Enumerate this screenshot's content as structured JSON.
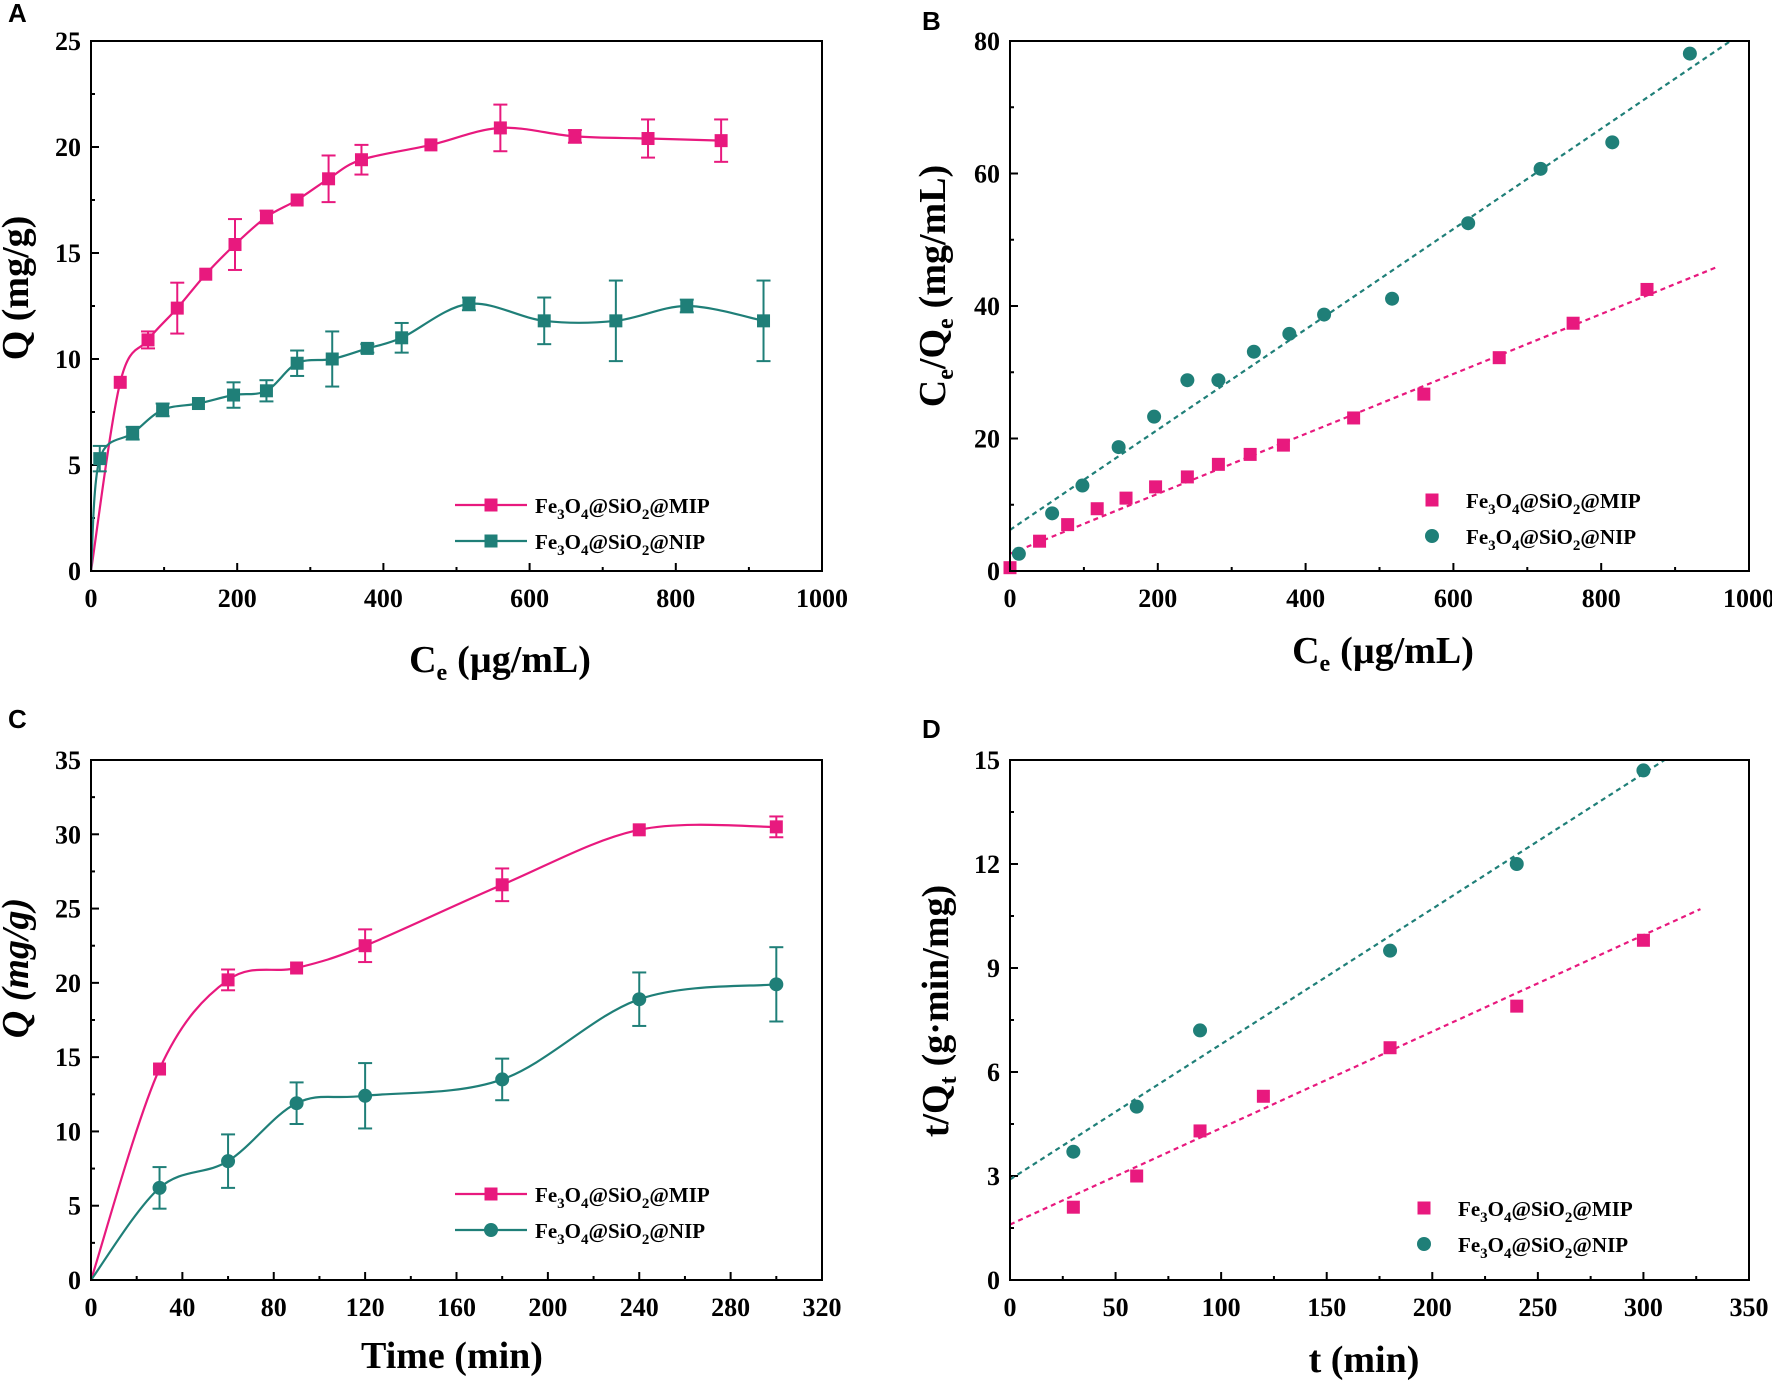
{
  "colors": {
    "mip": "#e8197e",
    "nip": "#1f7f78"
  },
  "chart_data": [
    {
      "panel": "A",
      "type": "line",
      "xlabel": "C",
      "xlabel_sub": "e",
      "xlabel_unit": "(µg/mL)",
      "ylabel": "Q (mg/g)",
      "xlim": [
        0,
        1000
      ],
      "ylim": [
        0,
        25
      ],
      "xticks": [
        "0",
        "200",
        "400",
        "600",
        "800",
        "1000"
      ],
      "yticks": [
        "0",
        "5",
        "10",
        "15",
        "20",
        "25"
      ],
      "legend_position": "bottom-right",
      "series": [
        {
          "name": "Fe3O4@SiO2@MIP",
          "marker": "square",
          "color_key": "mip",
          "style": "solid",
          "x": [
            0,
            40,
            78,
            118,
            157,
            197,
            240,
            282,
            325,
            370,
            465,
            560,
            662,
            762,
            862
          ],
          "y": [
            0,
            8.9,
            10.9,
            12.4,
            14.0,
            15.4,
            16.7,
            17.5,
            18.5,
            19.4,
            20.1,
            20.9,
            20.5,
            20.4,
            20.3
          ],
          "err": [
            0,
            0,
            0.4,
            1.2,
            0,
            1.2,
            0.3,
            0,
            1.1,
            0.7,
            0,
            1.1,
            0.3,
            0.9,
            1.0
          ]
        },
        {
          "name": "Fe3O4@SiO2@NIP",
          "marker": "square",
          "color_key": "nip",
          "style": "solid",
          "x": [
            0,
            12,
            57,
            98,
            147,
            195,
            240,
            282,
            330,
            378,
            425,
            517,
            620,
            718,
            815,
            920
          ],
          "y": [
            0,
            5.3,
            6.5,
            7.6,
            7.9,
            8.3,
            8.5,
            9.8,
            10.0,
            10.5,
            11.0,
            12.6,
            11.8,
            11.8,
            12.5,
            11.8
          ],
          "err": [
            0,
            0.6,
            0.3,
            0.3,
            0,
            0.6,
            0.5,
            0.6,
            1.3,
            0.2,
            0.7,
            0.3,
            1.1,
            1.9,
            0.3,
            1.9
          ]
        }
      ]
    },
    {
      "panel": "B",
      "type": "scatter",
      "xlabel": "C",
      "xlabel_sub": "e",
      "xlabel_unit": "(µg/mL)",
      "ylabel": "C",
      "ylabel_sub": "e",
      "ylabel_mid": "/Q",
      "ylabel_sub2": "e",
      "ylabel_unit": "(mg/mL)",
      "xlim": [
        0,
        1000
      ],
      "ylim": [
        0,
        80
      ],
      "xticks": [
        "0",
        "200",
        "400",
        "600",
        "800",
        "1000"
      ],
      "yticks": [
        "0",
        "20",
        "40",
        "60",
        "80"
      ],
      "legend_position": "bottom-right",
      "series": [
        {
          "name": "Fe3O4@SiO2@MIP",
          "marker": "square",
          "color_key": "mip",
          "x": [
            0,
            40,
            78,
            118,
            157,
            197,
            240,
            282,
            325,
            370,
            465,
            560,
            662,
            762,
            862
          ],
          "y": [
            0.5,
            4.5,
            7.0,
            9.4,
            11.0,
            12.7,
            14.2,
            16.1,
            17.6,
            19.0,
            23.1,
            26.7,
            32.2,
            37.4,
            42.5
          ],
          "fit": {
            "x": [
              0,
              955
            ],
            "y": [
              2.6,
              45.8
            ]
          }
        },
        {
          "name": "Fe3O4@SiO2@NIP",
          "marker": "circle",
          "color_key": "nip",
          "x": [
            12,
            57,
            98,
            147,
            195,
            240,
            282,
            330,
            378,
            425,
            517,
            620,
            718,
            815,
            920
          ],
          "y": [
            2.6,
            8.7,
            12.9,
            18.7,
            23.3,
            28.8,
            28.8,
            33.1,
            35.8,
            38.7,
            41.1,
            52.5,
            60.7,
            64.7,
            78.1
          ]
        }
      ],
      "fits": [
        {
          "color_key": "mip",
          "x": [
            0,
            955
          ],
          "y": [
            2.6,
            45.8
          ]
        },
        {
          "color_key": "nip",
          "x": [
            0,
            975
          ],
          "y": [
            6.2,
            80
          ]
        }
      ]
    },
    {
      "panel": "C",
      "type": "line",
      "xlabel": "Time (min)",
      "ylabel": "Q (mg/g)",
      "xlim": [
        0,
        320
      ],
      "ylim": [
        0,
        35
      ],
      "xticks": [
        "0",
        "40",
        "80",
        "120",
        "160",
        "200",
        "240",
        "280",
        "320"
      ],
      "yticks": [
        "0",
        "5",
        "10",
        "15",
        "20",
        "25",
        "30",
        "35"
      ],
      "legend_position": "bottom-right",
      "series": [
        {
          "name": "Fe3O4@SiO2@MIP",
          "marker": "square",
          "color_key": "mip",
          "style": "solid",
          "x": [
            0,
            30,
            60,
            90,
            120,
            180,
            240,
            300
          ],
          "y": [
            0,
            14.2,
            20.2,
            21.0,
            22.5,
            26.6,
            30.3,
            30.5
          ],
          "err": [
            0,
            0,
            0.7,
            0,
            1.1,
            1.1,
            0,
            0.7
          ]
        },
        {
          "name": "Fe3O4@SiO2@NIP",
          "marker": "circle",
          "color_key": "nip",
          "style": "solid",
          "x": [
            0,
            30,
            60,
            90,
            120,
            180,
            240,
            300
          ],
          "y": [
            0,
            6.2,
            8.0,
            11.9,
            12.4,
            13.5,
            18.9,
            19.9
          ],
          "err": [
            0,
            1.4,
            1.8,
            1.4,
            2.2,
            1.4,
            1.8,
            2.5
          ]
        }
      ]
    },
    {
      "panel": "D",
      "type": "scatter",
      "xlabel": "t (min)",
      "ylabel": "t/Q",
      "ylabel_sub": "t",
      "ylabel_unit": "(g·min/mg)",
      "xlim": [
        0,
        350
      ],
      "ylim": [
        0,
        15
      ],
      "xticks": [
        "0",
        "50",
        "100",
        "150",
        "200",
        "250",
        "300",
        "350"
      ],
      "yticks": [
        "0",
        "3",
        "6",
        "9",
        "12",
        "15"
      ],
      "legend_position": "bottom-right",
      "series": [
        {
          "name": "Fe3O4@SiO2@MIP",
          "marker": "square",
          "color_key": "mip",
          "x": [
            30,
            60,
            90,
            120,
            180,
            240,
            300
          ],
          "y": [
            2.1,
            3.0,
            4.3,
            5.3,
            6.7,
            7.9,
            9.8
          ]
        },
        {
          "name": "Fe3O4@SiO2@NIP",
          "marker": "circle",
          "color_key": "nip",
          "x": [
            30,
            60,
            90,
            180,
            240,
            300
          ],
          "y": [
            3.7,
            5.0,
            7.2,
            9.5,
            12.0,
            14.7
          ]
        }
      ],
      "fits": [
        {
          "color_key": "mip",
          "x": [
            0,
            327
          ],
          "y": [
            1.6,
            10.7
          ]
        },
        {
          "color_key": "nip",
          "x": [
            0,
            310
          ],
          "y": [
            2.9,
            15
          ]
        }
      ]
    }
  ],
  "legend": {
    "mip": {
      "a": "Fe",
      "s1": "3",
      "b": "O",
      "s2": "4",
      "c": "@SiO",
      "s3": "2",
      "d": "@MIP"
    },
    "nip": {
      "a": "Fe",
      "s1": "3",
      "b": "O",
      "s2": "4",
      "c": "@SiO",
      "s3": "2",
      "d": "@NIP"
    }
  }
}
